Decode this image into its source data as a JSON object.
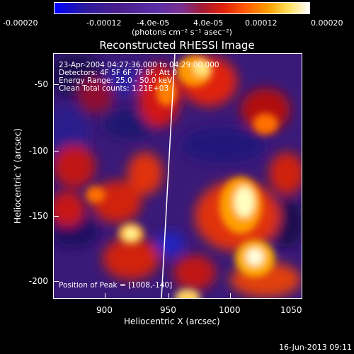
{
  "colorbar": {
    "ticks": [
      "-0.00020",
      "-0.00012",
      "-4.0e-05",
      "4.0e-05",
      "0.00012",
      "0.00020"
    ],
    "units": "(photons cm⁻² s⁻¹ asec⁻²)"
  },
  "title": "Reconstructed RHESSI Image",
  "annotations": {
    "time": "23-Apr-2004 04:27:36.000 to 04:29:00.000",
    "detectors": "Detectors: 4F 5F 6F 7F 8F, Att 0",
    "energy": "Energy Range: 25.0 - 50.0 keV",
    "method": "Clean     Total counts: 1.21E+03",
    "peak": "Position of Peak = [1008,-140]"
  },
  "axes": {
    "xlabel": "Heliocentric X (arcsec)",
    "ylabel": "Heliocentric Y (arcsec)",
    "xticks": [
      "900",
      "950",
      "1000",
      "1050"
    ],
    "yticks": [
      "-50",
      "-100",
      "-150",
      "-200"
    ]
  },
  "footer": {
    "date": "16-Jun-2013 09:11"
  }
}
